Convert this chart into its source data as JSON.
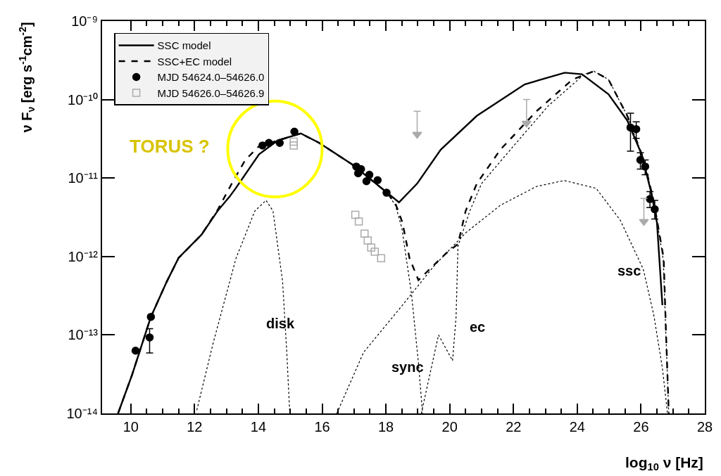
{
  "chart_data": {
    "type": "line",
    "xlabel": "log$_{10}$ ν [Hz]",
    "ylabel": "ν F$_{ν}$ [erg s$^{-1}$cm$^{-2}$]",
    "xlim": [
      9.1,
      28
    ],
    "xticks": [
      10,
      12,
      14,
      16,
      18,
      20,
      22,
      24,
      26,
      28
    ],
    "ylim": [
      1e-14,
      1e-09
    ],
    "log": "y",
    "yticks": [
      {
        "value": 1e-14,
        "label": "10⁻¹⁴"
      },
      {
        "value": 1e-13,
        "label": "10⁻¹³"
      },
      {
        "value": 1e-12,
        "label": "10⁻¹²"
      },
      {
        "value": 1e-11,
        "label": "10⁻¹¹"
      },
      {
        "value": 1e-10,
        "label": "10⁻¹⁰"
      },
      {
        "value": 1e-09,
        "label": "10⁻⁹"
      }
    ],
    "legend": "top left",
    "series": [
      {
        "name": "SSC model",
        "line_style": "solid",
        "color": "#000000",
        "x": [
          9.6,
          10.04,
          10.63,
          11.13,
          11.5,
          12.22,
          12.72,
          13.1,
          13.3,
          14.02,
          14.6,
          15.33,
          15.91,
          16.93,
          18.02,
          18.41,
          18.98,
          19.72,
          20.85,
          22.35,
          23.61,
          24.15,
          24.98,
          25.57,
          26.02,
          26.33,
          26.5,
          26.67
        ],
        "values": [
          1e-14,
          3.1e-14,
          1.7e-13,
          4.8e-13,
          9.6e-13,
          1.9e-12,
          3.8e-12,
          5.8e-12,
          7.5e-12,
          2e-11,
          3e-11,
          3.7e-11,
          2.8e-11,
          1.5e-11,
          6.6e-12,
          4.9e-12,
          8.5e-12,
          2.3e-11,
          6.2e-11,
          1.56e-10,
          2.2e-10,
          2.1e-10,
          1.17e-10,
          5.4e-11,
          2e-11,
          6.3e-12,
          2.7e-12,
          2.4e-13
        ]
      },
      {
        "name": "SSC+EC model",
        "line_style": "dashed",
        "color": "#000000",
        "x": [
          9.6,
          10.04,
          10.63,
          11.13,
          11.5,
          12.22,
          12.72,
          13.2,
          13.59,
          14.0,
          14.6,
          15.33,
          15.91,
          16.93,
          18.02,
          18.3,
          18.52,
          18.74,
          19.02,
          19.89,
          20.26,
          20.5,
          20.85,
          21.59,
          22.72,
          23.85,
          24.52,
          24.98,
          25.57,
          26.09,
          26.4,
          26.71,
          26.78,
          26.87
        ],
        "values": [
          1e-14,
          3.1e-14,
          1.7e-13,
          4.8e-13,
          9.6e-13,
          1.9e-12,
          3.9e-12,
          9e-12,
          1.7e-11,
          2.5e-11,
          3e-11,
          3.7e-11,
          2.8e-11,
          1.5e-11,
          6.6e-12,
          4.7e-12,
          2.7e-12,
          9.5e-13,
          5e-13,
          1.1e-12,
          1.44e-12,
          3.8e-12,
          8.5e-12,
          2.3e-11,
          7.1e-11,
          1.8e-10,
          2.3e-10,
          1.8e-10,
          6.2e-11,
          1.7e-11,
          5e-12,
          9.5e-13,
          1.2e-13,
          1e-14
        ]
      },
      {
        "line_style": "dotted",
        "color": "#000000",
        "x": [
          12.07,
          12.59,
          13.3,
          13.89,
          14.24,
          14.46,
          14.76,
          14.89,
          14.98
        ],
        "values": [
          1.1e-14,
          8.1e-14,
          9.5e-13,
          3.8e-12,
          5.2e-12,
          3.8e-12,
          4.8e-13,
          6.2e-14,
          1.1e-14
        ]
      },
      {
        "line_style": "dotted",
        "color": "#000000",
        "x": [
          16.93,
          18.02,
          18.3,
          18.5,
          18.8,
          19.02,
          19.15
        ],
        "values": [
          1.5e-11,
          6.6e-12,
          4.5e-12,
          2.3e-12,
          3.4e-13,
          4.4e-14,
          1e-14
        ]
      },
      {
        "line_style": "dotted",
        "color": "#000000",
        "x": [
          19.11,
          19.65,
          20.09,
          20.2,
          20.26,
          20.63,
          21.0,
          21.98,
          23.09,
          24.22,
          24.52,
          24.98,
          25.57,
          26.09,
          26.4,
          26.7,
          26.78,
          26.87
        ],
        "values": [
          1e-14,
          1e-13,
          4.7e-14,
          1.7e-13,
          1.35e-12,
          3.8e-12,
          8.5e-12,
          2.5e-11,
          8.3e-11,
          2.1e-10,
          2.3e-10,
          1.8e-10,
          6.2e-11,
          1.7e-11,
          5e-12,
          9e-13,
          1e-13,
          1e-14
        ]
      },
      {
        "line_style": "dotted",
        "color": "#000000",
        "x": [
          16.46,
          17.3,
          18.52,
          19.5,
          20.5,
          21.59,
          22.72,
          23.59,
          24.59,
          25.35,
          26.07,
          26.4,
          26.67,
          26.83
        ],
        "values": [
          1e-14,
          6e-14,
          2.4e-13,
          7.5e-13,
          2e-12,
          4.5e-12,
          7.8e-12,
          9.3e-12,
          7.4e-12,
          2.9e-12,
          6.9e-13,
          1.8e-13,
          3.8e-14,
          1e-14
        ]
      },
      {
        "name": "MJD 54624.0–54626.0",
        "type": "scatter",
        "marker": "circle",
        "color": "#000000",
        "x": [
          10.15,
          10.59,
          10.63,
          14.13,
          14.33,
          14.67,
          15.13,
          17.07,
          17.13,
          17.22,
          17.39,
          17.48,
          17.74,
          18.02,
          25.67,
          25.85,
          25.98,
          26.13,
          26.28,
          26.43
        ],
        "values": [
          6.3e-14,
          9.3e-14,
          1.7e-13,
          2.6e-11,
          2.8e-11,
          2.8e-11,
          3.9e-11,
          1.4e-11,
          1.15e-11,
          1.3e-11,
          9.1e-12,
          1.1e-11,
          9.4e-12,
          6.5e-12,
          4.4e-11,
          4.2e-11,
          1.7e-11,
          1.4e-11,
          5.4e-12,
          4e-12
        ],
        "errors": [
          null,
          [
            5.9e-14,
            1.2e-13
          ],
          null,
          null,
          null,
          null,
          null,
          null,
          null,
          null,
          null,
          null,
          null,
          null,
          [
            2.2e-11,
            6.7e-11
          ],
          [
            3.2e-11,
            5.2e-11
          ],
          [
            1.3e-11,
            2.1e-11
          ],
          [
            1.1e-11,
            1.7e-11
          ],
          [
            4.2e-12,
            6.7e-12
          ],
          [
            3e-12,
            5.2e-12
          ]
        ]
      },
      {
        "name": "MJD 54626.0–54626.9",
        "type": "scatter",
        "marker": "square",
        "color": "#aaaaaa",
        "x": [
          15.11,
          15.11,
          17.04,
          17.15,
          17.33,
          17.43,
          17.54,
          17.65,
          17.85
        ],
        "values": [
          2.9e-11,
          2.6e-11,
          3.4e-12,
          2.8e-12,
          1.96e-12,
          1.6e-12,
          1.3e-12,
          1.15e-12,
          9.5e-13
        ]
      },
      {
        "type": "scatter",
        "marker": "triangle",
        "color": "#aaaaaa",
        "x": [
          18.98,
          22.41,
          26.09
        ],
        "values": [
          3.6e-11,
          5e-11,
          2.8e-12
        ],
        "errors": [
          [
            3.6e-11,
            7.1e-11
          ],
          [
            5e-11,
            1e-10
          ],
          [
            2.8e-12,
            5.5e-12
          ]
        ]
      }
    ],
    "annotations": [
      "disk",
      "sync",
      "ec",
      "ssc",
      "TORUS ?"
    ]
  }
}
